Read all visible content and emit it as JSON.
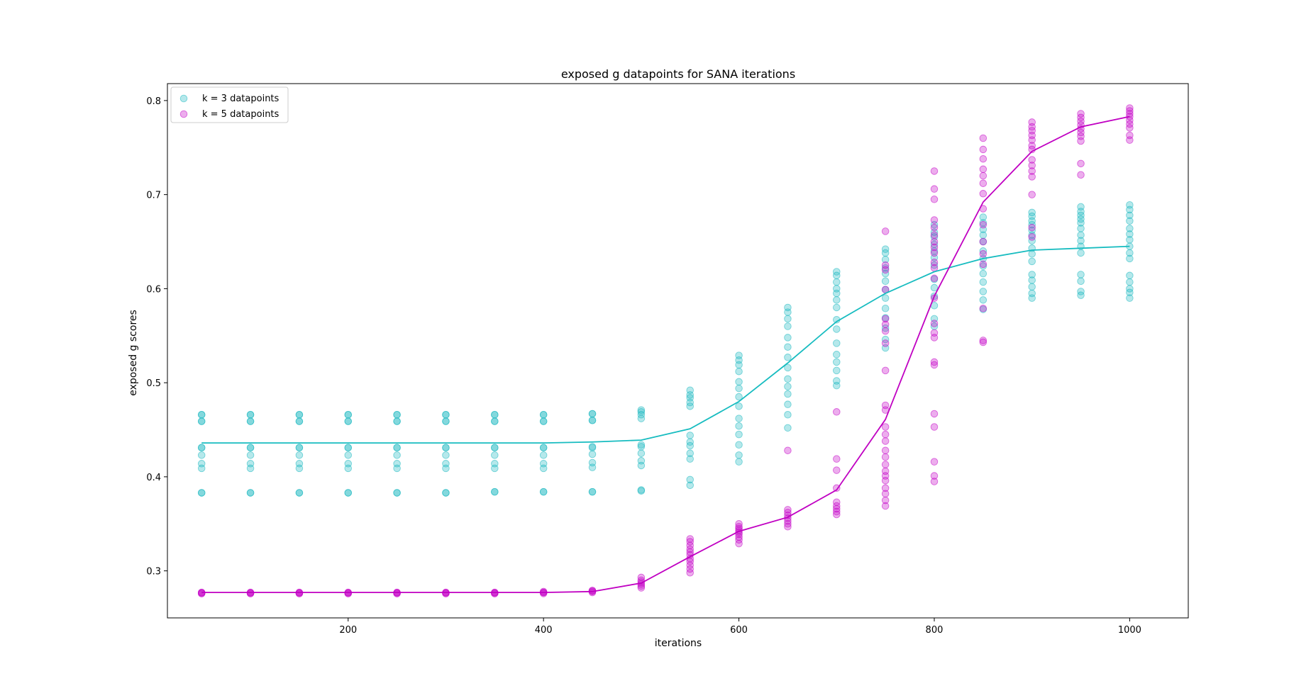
{
  "chart_data": {
    "type": "scatter",
    "title": "exposed g datapoints for SANA iterations",
    "xlabel": "iterations",
    "ylabel": "exposed g scores",
    "xlim": [
      15,
      1060
    ],
    "ylim": [
      0.25,
      0.818
    ],
    "xticks": [
      200,
      400,
      600,
      800,
      1000
    ],
    "xtick_labels": [
      "200",
      "400",
      "600",
      "800",
      "1000"
    ],
    "yticks": [
      0.3,
      0.4,
      0.5,
      0.6,
      0.7,
      0.8
    ],
    "ytick_labels": [
      "0.3",
      "0.4",
      "0.5",
      "0.6",
      "0.7",
      "0.8"
    ],
    "grid": false,
    "legend_position": "top-left",
    "series": [
      {
        "name": "k = 3 datapoints",
        "color": "#17becf",
        "marker_color": "#1ab8c0",
        "line_color": "#17bcc0",
        "points": [
          {
            "x": 50,
            "y": [
              0.466,
              0.466,
              0.459,
              0.459,
              0.431,
              0.431,
              0.423,
              0.414,
              0.409,
              0.383,
              0.383
            ]
          },
          {
            "x": 100,
            "y": [
              0.466,
              0.466,
              0.459,
              0.459,
              0.431,
              0.431,
              0.423,
              0.414,
              0.409,
              0.383,
              0.383
            ]
          },
          {
            "x": 150,
            "y": [
              0.466,
              0.466,
              0.459,
              0.459,
              0.431,
              0.431,
              0.423,
              0.414,
              0.409,
              0.383,
              0.383
            ]
          },
          {
            "x": 200,
            "y": [
              0.466,
              0.466,
              0.459,
              0.459,
              0.431,
              0.431,
              0.423,
              0.414,
              0.409,
              0.383,
              0.383
            ]
          },
          {
            "x": 250,
            "y": [
              0.466,
              0.466,
              0.459,
              0.459,
              0.431,
              0.431,
              0.423,
              0.414,
              0.409,
              0.383,
              0.383
            ]
          },
          {
            "x": 300,
            "y": [
              0.466,
              0.466,
              0.459,
              0.459,
              0.431,
              0.431,
              0.423,
              0.414,
              0.409,
              0.383,
              0.383
            ]
          },
          {
            "x": 350,
            "y": [
              0.466,
              0.466,
              0.459,
              0.459,
              0.431,
              0.431,
              0.423,
              0.414,
              0.409,
              0.384,
              0.384
            ]
          },
          {
            "x": 400,
            "y": [
              0.466,
              0.466,
              0.459,
              0.459,
              0.431,
              0.431,
              0.423,
              0.414,
              0.409,
              0.384,
              0.384
            ]
          },
          {
            "x": 450,
            "y": [
              0.467,
              0.467,
              0.46,
              0.46,
              0.432,
              0.431,
              0.424,
              0.415,
              0.41,
              0.384,
              0.384
            ]
          },
          {
            "x": 500,
            "y": [
              0.471,
              0.469,
              0.466,
              0.462,
              0.434,
              0.432,
              0.425,
              0.417,
              0.412,
              0.386,
              0.385
            ]
          },
          {
            "x": 550,
            "y": [
              0.492,
              0.487,
              0.484,
              0.479,
              0.475,
              0.444,
              0.437,
              0.433,
              0.425,
              0.419,
              0.397,
              0.391
            ]
          },
          {
            "x": 600,
            "y": [
              0.529,
              0.524,
              0.519,
              0.512,
              0.501,
              0.494,
              0.485,
              0.475,
              0.462,
              0.454,
              0.445,
              0.434,
              0.423,
              0.416
            ]
          },
          {
            "x": 650,
            "y": [
              0.58,
              0.575,
              0.568,
              0.56,
              0.548,
              0.538,
              0.527,
              0.516,
              0.504,
              0.496,
              0.488,
              0.477,
              0.466,
              0.452
            ]
          },
          {
            "x": 700,
            "y": [
              0.618,
              0.614,
              0.607,
              0.6,
              0.595,
              0.588,
              0.58,
              0.567,
              0.557,
              0.542,
              0.53,
              0.522,
              0.513,
              0.502,
              0.497
            ]
          },
          {
            "x": 750,
            "y": [
              0.642,
              0.638,
              0.631,
              0.622,
              0.616,
              0.608,
              0.599,
              0.59,
              0.579,
              0.569,
              0.558,
              0.546,
              0.537
            ]
          },
          {
            "x": 800,
            "y": [
              0.668,
              0.66,
              0.655,
              0.647,
              0.64,
              0.633,
              0.625,
              0.61,
              0.601,
              0.592,
              0.582,
              0.568,
              0.56
            ]
          },
          {
            "x": 850,
            "y": [
              0.676,
              0.67,
              0.663,
              0.657,
              0.65,
              0.64,
              0.632,
              0.624,
              0.616,
              0.607,
              0.597,
              0.588,
              0.578
            ]
          },
          {
            "x": 900,
            "y": [
              0.681,
              0.677,
              0.672,
              0.668,
              0.662,
              0.657,
              0.651,
              0.643,
              0.637,
              0.629,
              0.615,
              0.609,
              0.602,
              0.595,
              0.59
            ]
          },
          {
            "x": 950,
            "y": [
              0.687,
              0.682,
              0.678,
              0.674,
              0.67,
              0.664,
              0.657,
              0.651,
              0.645,
              0.638,
              0.615,
              0.608,
              0.597,
              0.593
            ]
          },
          {
            "x": 1000,
            "y": [
              0.689,
              0.684,
              0.678,
              0.672,
              0.664,
              0.658,
              0.652,
              0.645,
              0.638,
              0.632,
              0.614,
              0.607,
              0.6,
              0.596,
              0.59
            ]
          }
        ],
        "mean_line": {
          "x": [
            50,
            100,
            150,
            200,
            250,
            300,
            350,
            400,
            450,
            500,
            550,
            600,
            650,
            700,
            750,
            800,
            850,
            900,
            950,
            1000
          ],
          "y": [
            0.436,
            0.436,
            0.436,
            0.436,
            0.436,
            0.436,
            0.436,
            0.436,
            0.437,
            0.439,
            0.451,
            0.48,
            0.521,
            0.565,
            0.595,
            0.618,
            0.632,
            0.641,
            0.643,
            0.645
          ]
        }
      },
      {
        "name": "k = 5 datapoints",
        "color": "#c000c0",
        "marker_color": "#c400c6",
        "line_color": "#c000c2",
        "points": [
          {
            "x": 50,
            "y": [
              0.277,
              0.277,
              0.276,
              0.276
            ]
          },
          {
            "x": 100,
            "y": [
              0.277,
              0.277,
              0.276,
              0.276
            ]
          },
          {
            "x": 150,
            "y": [
              0.277,
              0.277,
              0.276,
              0.276
            ]
          },
          {
            "x": 200,
            "y": [
              0.277,
              0.277,
              0.276,
              0.276
            ]
          },
          {
            "x": 250,
            "y": [
              0.277,
              0.277,
              0.276,
              0.276
            ]
          },
          {
            "x": 300,
            "y": [
              0.277,
              0.277,
              0.276,
              0.276
            ]
          },
          {
            "x": 350,
            "y": [
              0.277,
              0.277,
              0.276,
              0.276
            ]
          },
          {
            "x": 400,
            "y": [
              0.278,
              0.277,
              0.277,
              0.276
            ]
          },
          {
            "x": 450,
            "y": [
              0.279,
              0.279,
              0.278,
              0.277
            ]
          },
          {
            "x": 500,
            "y": [
              0.293,
              0.29,
              0.288,
              0.286,
              0.284,
              0.282
            ]
          },
          {
            "x": 550,
            "y": [
              0.334,
              0.331,
              0.327,
              0.323,
              0.32,
              0.317,
              0.313,
              0.31,
              0.306,
              0.302,
              0.298
            ]
          },
          {
            "x": 600,
            "y": [
              0.35,
              0.347,
              0.345,
              0.343,
              0.341,
              0.339,
              0.336,
              0.333,
              0.329
            ]
          },
          {
            "x": 650,
            "y": [
              0.428,
              0.365,
              0.362,
              0.359,
              0.356,
              0.353,
              0.35,
              0.347
            ]
          },
          {
            "x": 700,
            "y": [
              0.469,
              0.419,
              0.407,
              0.388,
              0.373,
              0.369,
              0.366,
              0.363,
              0.36
            ]
          },
          {
            "x": 750,
            "y": [
              0.661,
              0.625,
              0.62,
              0.599,
              0.568,
              0.562,
              0.555,
              0.542,
              0.513,
              0.476,
              0.471,
              0.453,
              0.445,
              0.438,
              0.428,
              0.421,
              0.413,
              0.406,
              0.401,
              0.396,
              0.388,
              0.382,
              0.375,
              0.369
            ]
          },
          {
            "x": 800,
            "y": [
              0.725,
              0.706,
              0.695,
              0.673,
              0.665,
              0.657,
              0.65,
              0.644,
              0.638,
              0.628,
              0.622,
              0.611,
              0.59,
              0.563,
              0.553,
              0.548,
              0.522,
              0.519,
              0.467,
              0.453,
              0.416,
              0.401,
              0.395
            ]
          },
          {
            "x": 850,
            "y": [
              0.76,
              0.748,
              0.738,
              0.727,
              0.72,
              0.712,
              0.701,
              0.685,
              0.668,
              0.65,
              0.637,
              0.626,
              0.579,
              0.545,
              0.543
            ]
          },
          {
            "x": 900,
            "y": [
              0.777,
              0.772,
              0.768,
              0.763,
              0.758,
              0.752,
              0.748,
              0.737,
              0.731,
              0.725,
              0.719,
              0.7,
              0.665,
              0.655
            ]
          },
          {
            "x": 950,
            "y": [
              0.786,
              0.782,
              0.778,
              0.774,
              0.77,
              0.766,
              0.762,
              0.757,
              0.733,
              0.721
            ]
          },
          {
            "x": 1000,
            "y": [
              0.792,
              0.789,
              0.786,
              0.783,
              0.779,
              0.775,
              0.771,
              0.763,
              0.758
            ]
          }
        ],
        "mean_line": {
          "x": [
            50,
            100,
            150,
            200,
            250,
            300,
            350,
            400,
            450,
            500,
            550,
            600,
            650,
            700,
            750,
            800,
            850,
            900,
            950,
            1000
          ],
          "y": [
            0.277,
            0.277,
            0.277,
            0.277,
            0.277,
            0.277,
            0.277,
            0.277,
            0.278,
            0.287,
            0.315,
            0.342,
            0.357,
            0.386,
            0.461,
            0.592,
            0.692,
            0.746,
            0.772,
            0.783
          ]
        }
      }
    ]
  }
}
